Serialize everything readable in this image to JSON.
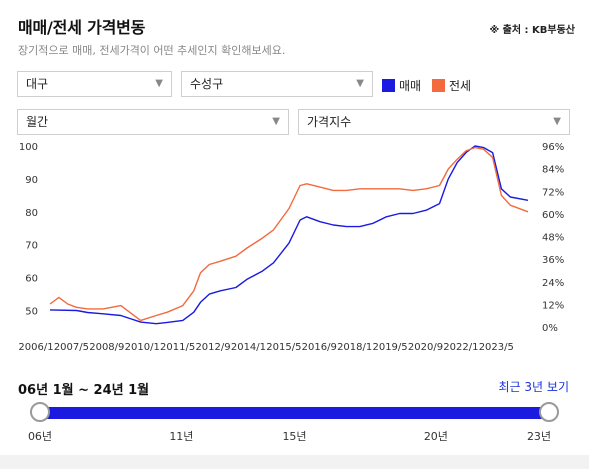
{
  "header": {
    "title": "매매/전세 가격변동",
    "source": "※ 출처 : KB부동산",
    "subtitle": "장기적으로 매매, 전세가격이 어떤 추세인지 확인해보세요."
  },
  "filters": {
    "region": "대구",
    "district": "수성구",
    "period": "월간",
    "metric": "가격지수"
  },
  "legend": [
    {
      "label": "매매",
      "color": "#1a1ae0"
    },
    {
      "label": "전세",
      "color": "#f26a3d"
    }
  ],
  "chart_data": {
    "type": "line",
    "x_tick_labels": [
      "2006/1",
      "2007/5",
      "2008/9",
      "2010/1",
      "2011/5",
      "2012/9",
      "2014/1",
      "2015/5",
      "2016/9",
      "2018/1",
      "2019/5",
      "2020/9",
      "2022/1",
      "2023/5"
    ],
    "xlim": [
      "2006/1",
      "2024/1"
    ],
    "left_axis": {
      "ticks": [
        "100",
        "90",
        "80",
        "70",
        "60",
        "50"
      ],
      "ylim": [
        45,
        100
      ]
    },
    "right_axis": {
      "ticks": [
        "96%",
        "84%",
        "72%",
        "60%",
        "48%",
        "36%",
        "24%",
        "12%",
        "0%"
      ],
      "ylim": [
        0,
        96
      ]
    },
    "grid": false,
    "series": [
      {
        "name": "매매",
        "color": "#1a1ae0",
        "points": [
          [
            "2006/1",
            50.2
          ],
          [
            "2007/1",
            50.0
          ],
          [
            "2007/6",
            49.4
          ],
          [
            "2008/1",
            49.0
          ],
          [
            "2008/9",
            48.5
          ],
          [
            "2009/6",
            46.5
          ],
          [
            "2010/1",
            46.0
          ],
          [
            "2010/6",
            46.4
          ],
          [
            "2011/1",
            47.0
          ],
          [
            "2011/6",
            49.5
          ],
          [
            "2011/9",
            52.5
          ],
          [
            "2012/1",
            55.0
          ],
          [
            "2012/6",
            56.0
          ],
          [
            "2013/1",
            57.0
          ],
          [
            "2013/6",
            59.5
          ],
          [
            "2014/1",
            62.0
          ],
          [
            "2014/6",
            64.5
          ],
          [
            "2015/1",
            70.5
          ],
          [
            "2015/6",
            77.5
          ],
          [
            "2015/9",
            78.5
          ],
          [
            "2016/3",
            77.0
          ],
          [
            "2016/9",
            76.0
          ],
          [
            "2017/3",
            75.5
          ],
          [
            "2017/9",
            75.5
          ],
          [
            "2018/3",
            76.5
          ],
          [
            "2018/9",
            78.5
          ],
          [
            "2019/3",
            79.5
          ],
          [
            "2019/9",
            79.5
          ],
          [
            "2020/3",
            80.5
          ],
          [
            "2020/9",
            82.5
          ],
          [
            "2021/1",
            90.0
          ],
          [
            "2021/5",
            95.0
          ],
          [
            "2021/9",
            98.0
          ],
          [
            "2022/1",
            100.0
          ],
          [
            "2022/5",
            99.5
          ],
          [
            "2022/9",
            98.0
          ],
          [
            "2023/1",
            87.0
          ],
          [
            "2023/5",
            84.5
          ],
          [
            "2024/1",
            83.5
          ]
        ]
      },
      {
        "name": "전세",
        "color": "#f26a3d",
        "points": [
          [
            "2006/1",
            52.0
          ],
          [
            "2006/5",
            54.0
          ],
          [
            "2006/9",
            52.0
          ],
          [
            "2007/1",
            51.0
          ],
          [
            "2007/6",
            50.5
          ],
          [
            "2008/1",
            50.5
          ],
          [
            "2008/9",
            51.5
          ],
          [
            "2009/6",
            47.0
          ],
          [
            "2010/1",
            48.5
          ],
          [
            "2010/6",
            49.5
          ],
          [
            "2011/1",
            51.5
          ],
          [
            "2011/6",
            56.0
          ],
          [
            "2011/9",
            61.5
          ],
          [
            "2012/1",
            64.0
          ],
          [
            "2012/6",
            65.0
          ],
          [
            "2013/1",
            66.5
          ],
          [
            "2013/6",
            69.0
          ],
          [
            "2014/1",
            72.0
          ],
          [
            "2014/6",
            74.5
          ],
          [
            "2015/1",
            81.0
          ],
          [
            "2015/6",
            88.0
          ],
          [
            "2015/9",
            88.5
          ],
          [
            "2016/3",
            87.5
          ],
          [
            "2016/9",
            86.5
          ],
          [
            "2017/3",
            86.5
          ],
          [
            "2017/9",
            87.0
          ],
          [
            "2018/3",
            87.0
          ],
          [
            "2018/9",
            87.0
          ],
          [
            "2019/3",
            87.0
          ],
          [
            "2019/9",
            86.5
          ],
          [
            "2020/3",
            87.0
          ],
          [
            "2020/9",
            88.0
          ],
          [
            "2021/1",
            93.0
          ],
          [
            "2021/5",
            96.0
          ],
          [
            "2021/9",
            98.5
          ],
          [
            "2022/1",
            99.5
          ],
          [
            "2022/5",
            99.0
          ],
          [
            "2022/9",
            96.5
          ],
          [
            "2023/1",
            85.0
          ],
          [
            "2023/5",
            82.0
          ],
          [
            "2024/1",
            80.0
          ]
        ]
      }
    ]
  },
  "range": {
    "label": "06년 1월 ~ 24년 1월",
    "recent_link": "최근 3년 보기",
    "slider_ticks": [
      "06년",
      "11년",
      "15년",
      "20년",
      "23년"
    ],
    "slider_tick_years": [
      2006,
      2011,
      2015,
      2020,
      2023
    ],
    "slider_start": "2006/1",
    "slider_end": "2024/1"
  }
}
